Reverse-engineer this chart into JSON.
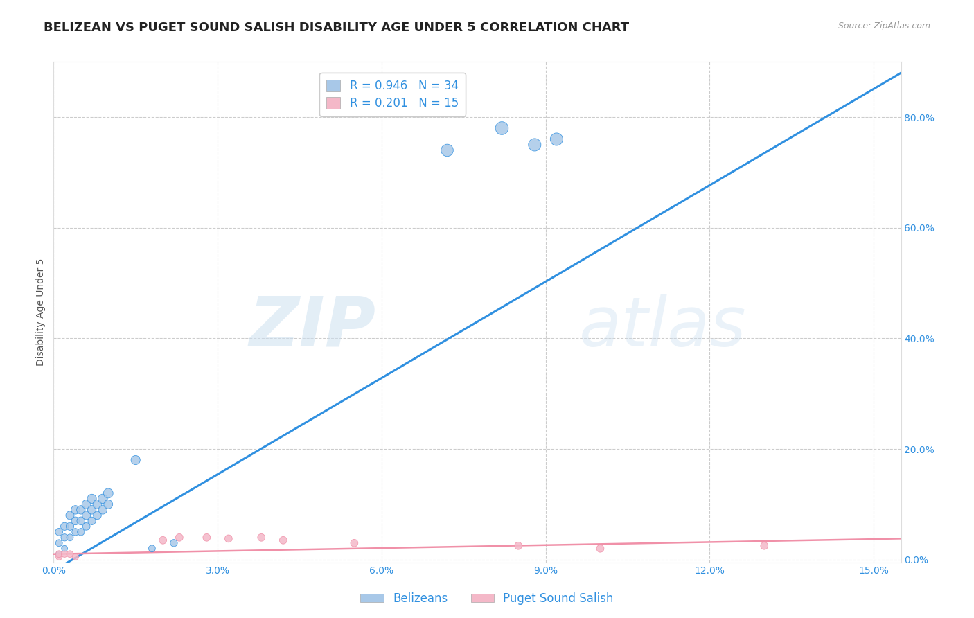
{
  "title": "BELIZEAN VS PUGET SOUND SALISH DISABILITY AGE UNDER 5 CORRELATION CHART",
  "source": "Source: ZipAtlas.com",
  "ylabel": "Disability Age Under 5",
  "x_ticks": [
    0.0,
    0.03,
    0.06,
    0.09,
    0.12,
    0.15
  ],
  "x_tick_labels": [
    "0.0%",
    "3.0%",
    "6.0%",
    "9.0%",
    "12.0%",
    "15.0%"
  ],
  "y_ticks_right": [
    0.0,
    0.2,
    0.4,
    0.6,
    0.8
  ],
  "y_tick_labels_right": [
    "0.0%",
    "20.0%",
    "40.0%",
    "60.0%",
    "80.0%"
  ],
  "xlim": [
    0.0,
    0.155
  ],
  "ylim": [
    -0.005,
    0.9
  ],
  "blue_R": 0.946,
  "blue_N": 34,
  "pink_R": 0.201,
  "pink_N": 15,
  "blue_color": "#a8c8e8",
  "pink_color": "#f4b8c8",
  "blue_line_color": "#3090e0",
  "pink_line_color": "#f090a8",
  "legend_label_blue": "Belizeans",
  "legend_label_pink": "Puget Sound Salish",
  "watermark_zip": "ZIP",
  "watermark_atlas": "atlas",
  "title_fontsize": 13,
  "axis_label_fontsize": 10,
  "tick_fontsize": 10,
  "blue_scatter_x": [
    0.001,
    0.001,
    0.001,
    0.002,
    0.002,
    0.002,
    0.003,
    0.003,
    0.003,
    0.004,
    0.004,
    0.004,
    0.005,
    0.005,
    0.005,
    0.006,
    0.006,
    0.006,
    0.007,
    0.007,
    0.007,
    0.008,
    0.008,
    0.009,
    0.009,
    0.01,
    0.01,
    0.015,
    0.018,
    0.022,
    0.072,
    0.082,
    0.088,
    0.092
  ],
  "blue_scatter_y": [
    0.01,
    0.03,
    0.05,
    0.02,
    0.04,
    0.06,
    0.04,
    0.06,
    0.08,
    0.05,
    0.07,
    0.09,
    0.05,
    0.07,
    0.09,
    0.06,
    0.08,
    0.1,
    0.07,
    0.09,
    0.11,
    0.08,
    0.1,
    0.09,
    0.11,
    0.1,
    0.12,
    0.18,
    0.02,
    0.03,
    0.74,
    0.78,
    0.75,
    0.76
  ],
  "blue_scatter_sizes": [
    40,
    50,
    60,
    40,
    55,
    65,
    50,
    65,
    75,
    55,
    70,
    80,
    55,
    70,
    80,
    60,
    75,
    85,
    65,
    80,
    90,
    70,
    85,
    80,
    95,
    85,
    100,
    90,
    50,
    55,
    160,
    180,
    170,
    170
  ],
  "pink_scatter_x": [
    0.001,
    0.001,
    0.002,
    0.003,
    0.004,
    0.02,
    0.023,
    0.028,
    0.032,
    0.038,
    0.042,
    0.055,
    0.085,
    0.1,
    0.13
  ],
  "pink_scatter_y": [
    0.005,
    0.01,
    0.01,
    0.01,
    0.005,
    0.035,
    0.04,
    0.04,
    0.038,
    0.04,
    0.035,
    0.03,
    0.025,
    0.02,
    0.025
  ],
  "pink_scatter_sizes": [
    45,
    50,
    45,
    50,
    45,
    60,
    60,
    60,
    60,
    60,
    60,
    60,
    60,
    60,
    60
  ],
  "blue_line_x": [
    0.0,
    0.155
  ],
  "blue_line_y": [
    -0.02,
    0.88
  ],
  "pink_line_x": [
    0.0,
    0.155
  ],
  "pink_line_y": [
    0.01,
    0.038
  ],
  "background_color": "#ffffff",
  "grid_color": "#cccccc"
}
